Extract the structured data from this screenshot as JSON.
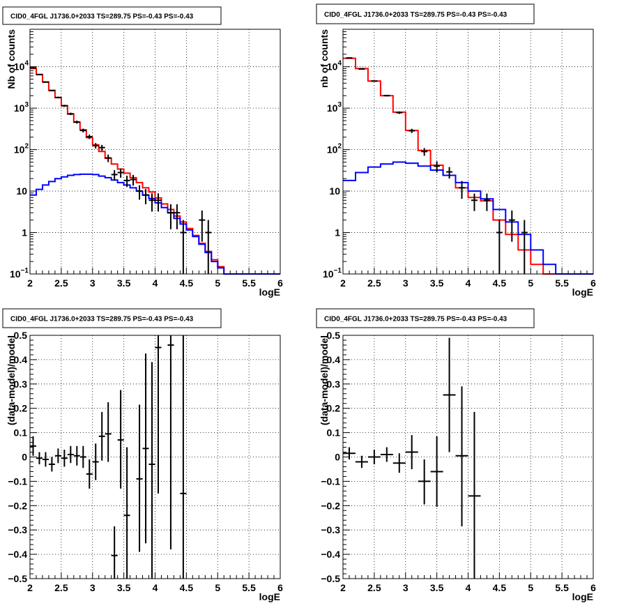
{
  "chart_data": [
    {
      "panel": "top-left",
      "type": "line",
      "title": "CID0_4FGL J1736.0+2033 TS=289.75 PS=-0.43 PS=-0.43",
      "xlabel": "logE",
      "ylabel": "Nb of counts",
      "xlim": [
        2,
        6
      ],
      "ylim": [
        0.1,
        80000
      ],
      "yscale": "log",
      "grid": true,
      "xticks": [
        "2",
        "2.5",
        "3",
        "3.5",
        "4",
        "4.5",
        "5",
        "5.5",
        "6"
      ],
      "yticks": [
        {
          "v": 0.1,
          "base": "10",
          "exp": "−1"
        },
        {
          "v": 1,
          "label": "1"
        },
        {
          "v": 10,
          "label": "10"
        },
        {
          "v": 100,
          "base": "10",
          "exp": "2"
        },
        {
          "v": 1000,
          "base": "10",
          "exp": "3"
        },
        {
          "v": 10000,
          "base": "10",
          "exp": "4"
        }
      ],
      "series": [
        {
          "color": "#ff0000",
          "style": "histogram",
          "edges": [
            2.0,
            2.1,
            2.2,
            2.3,
            2.4,
            2.5,
            2.6,
            2.7,
            2.8,
            2.9,
            3.0,
            3.1,
            3.2,
            3.3,
            3.4,
            3.5,
            3.6,
            3.7,
            3.8,
            3.9,
            4.0,
            4.1,
            4.2,
            4.3,
            4.4,
            4.5,
            4.6,
            4.7,
            4.8,
            4.9,
            5.0,
            5.1,
            5.2,
            5.3,
            5.4,
            5.5,
            5.6,
            5.7,
            5.8,
            5.9,
            6.0
          ],
          "values": [
            9000,
            6500,
            4300,
            2700,
            1800,
            1150,
            720,
            460,
            300,
            195,
            130,
            90,
            62,
            45,
            34,
            27,
            21,
            16,
            12,
            9.5,
            6.8,
            4.9,
            3.6,
            2.5,
            1.8,
            1.25,
            0.85,
            0.55,
            0.35,
            0.22,
            0.15,
            0.1,
            0.1,
            0.1,
            0.1,
            0.1,
            0.1,
            0.1,
            0.1,
            0.1
          ]
        },
        {
          "color": "#0000ff",
          "style": "histogram",
          "edges": [
            2.0,
            2.1,
            2.2,
            2.3,
            2.4,
            2.5,
            2.6,
            2.7,
            2.8,
            2.9,
            3.0,
            3.1,
            3.2,
            3.3,
            3.4,
            3.5,
            3.6,
            3.7,
            3.8,
            3.9,
            4.0,
            4.1,
            4.2,
            4.3,
            4.4,
            4.5,
            4.6,
            4.7,
            4.8,
            4.9,
            5.0,
            5.1,
            5.2,
            5.3,
            5.4,
            5.5,
            5.6,
            5.7,
            5.8,
            5.9,
            6.0
          ],
          "values": [
            8,
            11,
            14,
            17,
            20,
            22,
            24,
            25,
            25.5,
            25.5,
            25,
            23,
            21,
            18.5,
            16,
            14,
            12,
            10,
            8,
            6.6,
            5.2,
            4.0,
            3.0,
            2.2,
            1.6,
            1.15,
            0.8,
            0.52,
            0.33,
            0.2,
            0.14,
            0.1,
            0.1,
            0.1,
            0.1,
            0.1,
            0.1,
            0.1,
            0.1,
            0.1
          ]
        },
        {
          "color": "#000000",
          "style": "points",
          "points": [
            {
              "x": 2.05,
              "y": 9400,
              "ylo": 9210,
              "yhi": 9590
            },
            {
              "x": 2.15,
              "y": 6450,
              "ylo": 6290,
              "yhi": 6610
            },
            {
              "x": 2.25,
              "y": 4250,
              "ylo": 4120,
              "yhi": 4380
            },
            {
              "x": 2.35,
              "y": 2650,
              "ylo": 2550,
              "yhi": 2750
            },
            {
              "x": 2.45,
              "y": 1810,
              "ylo": 1725,
              "yhi": 1895
            },
            {
              "x": 2.55,
              "y": 1140,
              "ylo": 1075,
              "yhi": 1205
            },
            {
              "x": 2.65,
              "y": 730,
              "ylo": 680,
              "yhi": 780
            },
            {
              "x": 2.75,
              "y": 463,
              "ylo": 423,
              "yhi": 503
            },
            {
              "x": 2.85,
              "y": 290,
              "ylo": 259,
              "yhi": 321
            },
            {
              "x": 2.95,
              "y": 205,
              "ylo": 180,
              "yhi": 230
            },
            {
              "x": 3.05,
              "y": 125,
              "ylo": 106,
              "yhi": 144
            },
            {
              "x": 3.15,
              "y": 112,
              "ylo": 94,
              "yhi": 130
            },
            {
              "x": 3.25,
              "y": 63,
              "ylo": 50,
              "yhi": 76
            },
            {
              "x": 3.35,
              "y": 25,
              "ylo": 18,
              "yhi": 32
            },
            {
              "x": 3.45,
              "y": 28,
              "ylo": 21,
              "yhi": 35
            },
            {
              "x": 3.55,
              "y": 18,
              "ylo": 12.5,
              "yhi": 23.5
            },
            {
              "x": 3.65,
              "y": 19,
              "ylo": 13.5,
              "yhi": 24.5
            },
            {
              "x": 3.75,
              "y": 10,
              "ylo": 6.2,
              "yhi": 13.8
            },
            {
              "x": 3.85,
              "y": 8,
              "ylo": 4.8,
              "yhi": 11.2
            },
            {
              "x": 3.95,
              "y": 6,
              "ylo": 3.2,
              "yhi": 8.8
            },
            {
              "x": 4.05,
              "y": 6,
              "ylo": 3.2,
              "yhi": 8.8
            },
            {
              "x": 4.25,
              "y": 3,
              "ylo": 1.2,
              "yhi": 4.8
            },
            {
              "x": 4.35,
              "y": 3,
              "ylo": 1.2,
              "yhi": 4.8
            },
            {
              "x": 4.45,
              "y": 1,
              "ylo": 0.1,
              "yhi": 2.0
            },
            {
              "x": 4.75,
              "y": 2,
              "ylo": 0.6,
              "yhi": 3.4
            },
            {
              "x": 4.85,
              "y": 1,
              "ylo": 0.1,
              "yhi": 2.0
            }
          ]
        }
      ]
    },
    {
      "panel": "top-right",
      "type": "line",
      "title": "CID0_4FGL J1736.0+2033 TS=289.75 PS=-0.43 PS=-0.43",
      "xlabel": "logE",
      "ylabel": "nb of counts",
      "xlim": [
        2,
        6
      ],
      "ylim": [
        0.1,
        80000
      ],
      "yscale": "log",
      "grid": true,
      "xticks": [
        "2",
        "2.5",
        "3",
        "3.5",
        "4",
        "4.5",
        "5",
        "5.5",
        "6"
      ],
      "yticks": [
        {
          "v": 0.1,
          "base": "10",
          "exp": "−1"
        },
        {
          "v": 1,
          "label": "1"
        },
        {
          "v": 10,
          "label": "10"
        },
        {
          "v": 100,
          "base": "10",
          "exp": "2"
        },
        {
          "v": 1000,
          "base": "10",
          "exp": "3"
        },
        {
          "v": 10000,
          "base": "10",
          "exp": "4"
        }
      ],
      "series": [
        {
          "color": "#ff0000",
          "style": "histogram",
          "edges": [
            2.0,
            2.2,
            2.4,
            2.6,
            2.8,
            3.0,
            3.2,
            3.4,
            3.6,
            3.8,
            4.0,
            4.2,
            4.4,
            4.6,
            4.8,
            5.0,
            5.2,
            5.4,
            5.6,
            5.8,
            6.0
          ],
          "values": [
            16000,
            9000,
            4500,
            2000,
            800,
            290,
            95,
            42,
            24,
            12,
            7,
            5.8,
            2.0,
            0.9,
            0.38,
            0.17,
            0.1,
            0.1,
            0.1,
            0.1
          ]
        },
        {
          "color": "#0000ff",
          "style": "histogram",
          "edges": [
            2.0,
            2.2,
            2.4,
            2.6,
            2.8,
            3.0,
            3.2,
            3.4,
            3.6,
            3.8,
            4.0,
            4.2,
            4.4,
            4.6,
            4.8,
            5.0,
            5.2,
            5.4,
            5.6,
            5.8,
            6.0
          ],
          "values": [
            18,
            28,
            38,
            45,
            50,
            47,
            40,
            32,
            24,
            16,
            10,
            6.5,
            3.6,
            1.8,
            0.9,
            0.38,
            0.17,
            0.1,
            0.1,
            0.1
          ]
        },
        {
          "color": "#000000",
          "style": "points",
          "points": [
            {
              "x": 2.1,
              "y": 16300,
              "ylo": 16050,
              "yhi": 16550
            },
            {
              "x": 2.3,
              "y": 8800,
              "ylo": 8610,
              "yhi": 8990
            },
            {
              "x": 2.5,
              "y": 4500,
              "ylo": 4370,
              "yhi": 4630
            },
            {
              "x": 2.7,
              "y": 2010,
              "ylo": 1920,
              "yhi": 2100
            },
            {
              "x": 2.9,
              "y": 780,
              "ylo": 725,
              "yhi": 835
            },
            {
              "x": 3.1,
              "y": 285,
              "ylo": 252,
              "yhi": 318
            },
            {
              "x": 3.3,
              "y": 90,
              "ylo": 71,
              "yhi": 109
            },
            {
              "x": 3.5,
              "y": 40,
              "ylo": 28,
              "yhi": 52
            },
            {
              "x": 3.7,
              "y": 29,
              "ylo": 20,
              "yhi": 38
            },
            {
              "x": 3.9,
              "y": 12,
              "ylo": 6.5,
              "yhi": 17.5
            },
            {
              "x": 4.1,
              "y": 6,
              "ylo": 3.3,
              "yhi": 8.7
            },
            {
              "x": 4.3,
              "y": 6,
              "ylo": 3.3,
              "yhi": 8.7
            },
            {
              "x": 4.5,
              "y": 1,
              "ylo": 0.1,
              "yhi": 2.0
            },
            {
              "x": 4.7,
              "y": 2,
              "ylo": 0.6,
              "yhi": 3.4
            },
            {
              "x": 4.9,
              "y": 1,
              "ylo": 0.1,
              "yhi": 2.0
            }
          ]
        }
      ]
    },
    {
      "panel": "bottom-left",
      "type": "scatter",
      "title": "CID0_4FGL J1736.0+2033 TS=289.75 PS=-0.43 PS=-0.43",
      "xlabel": "logE",
      "ylabel": "(data-model)/model",
      "xlim": [
        2,
        6
      ],
      "ylim": [
        -0.5,
        0.5
      ],
      "yscale": "linear",
      "grid": true,
      "xticks": [
        "2",
        "2.5",
        "3",
        "3.5",
        "4",
        "4.5",
        "5",
        "5.5",
        "6"
      ],
      "yticks": [
        "−0.5",
        "−0.4",
        "−0.3",
        "−0.2",
        "−0.1",
        "0",
        "0.1",
        "0.2",
        "0.3",
        "0.4",
        "0.5"
      ],
      "series": [
        {
          "color": "#000000",
          "style": "points",
          "xerr": 0.05,
          "points": [
            {
              "x": 2.05,
              "y": 0.045,
              "ylo": 0.005,
              "yhi": 0.085
            },
            {
              "x": 2.15,
              "y": -0.005,
              "ylo": -0.03,
              "yhi": 0.02
            },
            {
              "x": 2.25,
              "y": -0.01,
              "ylo": -0.04,
              "yhi": 0.02
            },
            {
              "x": 2.35,
              "y": -0.03,
              "ylo": -0.06,
              "yhi": 0.0
            },
            {
              "x": 2.45,
              "y": 0.005,
              "ylo": -0.025,
              "yhi": 0.035
            },
            {
              "x": 2.55,
              "y": -0.005,
              "ylo": -0.04,
              "yhi": 0.03
            },
            {
              "x": 2.65,
              "y": 0.01,
              "ylo": -0.025,
              "yhi": 0.045
            },
            {
              "x": 2.75,
              "y": 0.005,
              "ylo": -0.035,
              "yhi": 0.045
            },
            {
              "x": 2.85,
              "y": 0.0,
              "ylo": -0.045,
              "yhi": 0.045
            },
            {
              "x": 2.95,
              "y": -0.07,
              "ylo": -0.13,
              "yhi": -0.01
            },
            {
              "x": 3.05,
              "y": -0.02,
              "ylo": -0.095,
              "yhi": 0.055
            },
            {
              "x": 3.15,
              "y": 0.085,
              "ylo": -0.015,
              "yhi": 0.185
            },
            {
              "x": 3.25,
              "y": 0.095,
              "ylo": -0.02,
              "yhi": 0.225
            },
            {
              "x": 3.35,
              "y": -0.405,
              "ylo": -0.5,
              "yhi": -0.285
            },
            {
              "x": 3.45,
              "y": 0.07,
              "ylo": -0.13,
              "yhi": 0.275
            },
            {
              "x": 3.55,
              "y": -0.24,
              "ylo": -0.5,
              "yhi": 0.04
            },
            {
              "x": 3.75,
              "y": -0.09,
              "ylo": -0.39,
              "yhi": 0.215
            },
            {
              "x": 3.85,
              "y": 0.035,
              "ylo": -0.355,
              "yhi": 0.425
            },
            {
              "x": 3.95,
              "y": -0.03,
              "ylo": -0.5,
              "yhi": 0.39
            },
            {
              "x": 4.05,
              "y": 0.45,
              "ylo": -0.15,
              "yhi": 0.5
            },
            {
              "x": 4.25,
              "y": 0.46,
              "ylo": -0.38,
              "yhi": 0.5
            },
            {
              "x": 4.45,
              "y": -0.15,
              "ylo": -0.5,
              "yhi": 0.5
            }
          ]
        }
      ]
    },
    {
      "panel": "bottom-right",
      "type": "scatter",
      "title": "CID0_4FGL J1736.0+2033 TS=289.75 PS=-0.43 PS=-0.43",
      "xlabel": "logE",
      "ylabel": "(data-model)/model",
      "xlim": [
        2,
        6
      ],
      "ylim": [
        -0.5,
        0.5
      ],
      "yscale": "linear",
      "grid": true,
      "xticks": [
        "2",
        "2.5",
        "3",
        "3.5",
        "4",
        "4.5",
        "5",
        "5.5",
        "6"
      ],
      "yticks": [
        "−0.5",
        "−0.4",
        "−0.3",
        "−0.2",
        "−0.1",
        "0",
        "0.1",
        "0.2",
        "0.3",
        "0.4",
        "0.5"
      ],
      "series": [
        {
          "color": "#000000",
          "style": "points",
          "xerr": 0.1,
          "points": [
            {
              "x": 2.1,
              "y": 0.015,
              "ylo": -0.01,
              "yhi": 0.04
            },
            {
              "x": 2.3,
              "y": -0.02,
              "ylo": -0.045,
              "yhi": 0.005
            },
            {
              "x": 2.5,
              "y": 0.0,
              "ylo": -0.03,
              "yhi": 0.03
            },
            {
              "x": 2.7,
              "y": 0.01,
              "ylo": -0.02,
              "yhi": 0.04
            },
            {
              "x": 2.9,
              "y": -0.025,
              "ylo": -0.065,
              "yhi": 0.015
            },
            {
              "x": 3.1,
              "y": 0.02,
              "ylo": -0.05,
              "yhi": 0.09
            },
            {
              "x": 3.3,
              "y": -0.1,
              "ylo": -0.195,
              "yhi": -0.01
            },
            {
              "x": 3.5,
              "y": -0.06,
              "ylo": -0.205,
              "yhi": 0.085
            },
            {
              "x": 3.7,
              "y": 0.255,
              "ylo": 0.02,
              "yhi": 0.49
            },
            {
              "x": 3.9,
              "y": 0.005,
              "ylo": -0.285,
              "yhi": 0.29
            },
            {
              "x": 4.1,
              "y": -0.16,
              "ylo": -0.5,
              "yhi": 0.185
            }
          ]
        }
      ]
    }
  ]
}
